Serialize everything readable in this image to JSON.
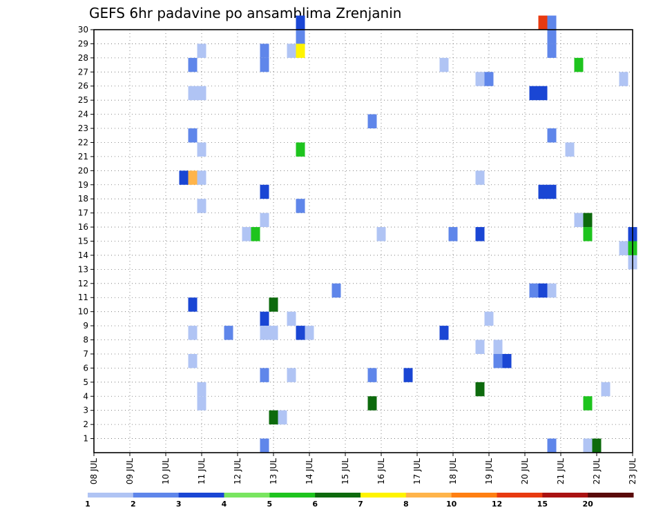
{
  "chart_data": {
    "type": "heatmap",
    "title": "GEFS 6hr padavine po ansamblima Zrenjanin",
    "y_ticks": [
      1,
      2,
      3,
      4,
      5,
      6,
      7,
      8,
      9,
      10,
      11,
      12,
      13,
      14,
      15,
      16,
      17,
      18,
      19,
      20,
      21,
      22,
      23,
      24,
      25,
      26,
      27,
      28,
      29,
      30
    ],
    "x_ticks": [
      "08 JUL",
      "09 JUL",
      "10 JUL",
      "11 JUL",
      "12 JUL",
      "13 JUL",
      "14 JUL",
      "15 JUL",
      "16 JUL",
      "17 JUL",
      "18 JUL",
      "19 JUL",
      "20 JUL",
      "21 JUL",
      "22 JUL",
      "23 JUL"
    ],
    "x_range_days": [
      8,
      23
    ],
    "y_range": [
      0,
      30
    ],
    "grid": true,
    "colorbar": {
      "labels": [
        "1",
        "2",
        "3",
        "4",
        "5",
        "6",
        "7",
        "8",
        "10",
        "12",
        "15",
        "20"
      ],
      "colors": [
        "#b0c4f4",
        "#5f86ea",
        "#1a46d4",
        "#79e560",
        "#1ec41e",
        "#0d6a0d",
        "#fff400",
        "#ffb44a",
        "#ff7f12",
        "#e83a10",
        "#aa1212",
        "#5a0a0a"
      ]
    },
    "cells": [
      [
        13.75,
        30,
        2
      ],
      [
        13.75,
        29,
        1
      ],
      [
        13.5,
        28,
        0
      ],
      [
        13.75,
        28,
        6
      ],
      [
        11.0,
        28,
        0
      ],
      [
        12.75,
        28,
        1
      ],
      [
        20.75,
        29,
        1
      ],
      [
        20.5,
        30,
        9
      ],
      [
        20.75,
        30,
        1
      ],
      [
        20.75,
        28,
        1
      ],
      [
        10.75,
        27,
        1
      ],
      [
        12.75,
        27,
        1
      ],
      [
        17.75,
        27,
        0
      ],
      [
        21.5,
        27,
        4
      ],
      [
        18.75,
        26,
        0
      ],
      [
        19.0,
        26,
        1
      ],
      [
        22.75,
        26,
        0
      ],
      [
        10.75,
        25,
        0
      ],
      [
        11.0,
        25,
        0
      ],
      [
        20.25,
        25,
        2
      ],
      [
        20.5,
        25,
        2
      ],
      [
        15.75,
        23,
        1
      ],
      [
        10.75,
        22,
        1
      ],
      [
        20.75,
        22,
        1
      ],
      [
        11.0,
        21,
        0
      ],
      [
        13.75,
        21,
        4
      ],
      [
        21.25,
        21,
        0
      ],
      [
        10.5,
        19,
        2
      ],
      [
        10.75,
        19,
        7
      ],
      [
        11.0,
        19,
        0
      ],
      [
        18.75,
        19,
        0
      ],
      [
        12.75,
        18,
        2
      ],
      [
        20.5,
        18,
        2
      ],
      [
        20.75,
        18,
        2
      ],
      [
        11.0,
        17,
        0
      ],
      [
        13.75,
        17,
        1
      ],
      [
        12.75,
        16,
        0
      ],
      [
        21.5,
        16,
        0
      ],
      [
        21.75,
        16,
        5
      ],
      [
        12.25,
        15,
        0
      ],
      [
        12.5,
        15,
        4
      ],
      [
        16.0,
        15,
        0
      ],
      [
        18.0,
        15,
        1
      ],
      [
        18.75,
        15,
        2
      ],
      [
        21.75,
        15,
        4
      ],
      [
        23.0,
        15,
        2
      ],
      [
        22.75,
        14,
        0
      ],
      [
        23.0,
        14,
        4
      ],
      [
        23.0,
        13,
        0
      ],
      [
        14.75,
        11,
        1
      ],
      [
        20.25,
        11,
        1
      ],
      [
        20.5,
        11,
        2
      ],
      [
        20.75,
        11,
        0
      ],
      [
        10.75,
        10,
        2
      ],
      [
        13.0,
        10,
        5
      ],
      [
        12.75,
        9,
        2
      ],
      [
        13.5,
        9,
        0
      ],
      [
        19.0,
        9,
        0
      ],
      [
        10.75,
        8,
        0
      ],
      [
        11.75,
        8,
        1
      ],
      [
        12.75,
        8,
        0
      ],
      [
        13.0,
        8,
        0
      ],
      [
        13.75,
        8,
        2
      ],
      [
        14.0,
        8,
        0
      ],
      [
        17.75,
        8,
        2
      ],
      [
        18.75,
        7,
        0
      ],
      [
        19.25,
        7,
        0
      ],
      [
        10.75,
        6,
        0
      ],
      [
        19.25,
        6,
        1
      ],
      [
        19.5,
        6,
        2
      ],
      [
        12.75,
        5,
        1
      ],
      [
        13.5,
        5,
        0
      ],
      [
        15.75,
        5,
        1
      ],
      [
        16.75,
        5,
        2
      ],
      [
        11.0,
        4,
        0
      ],
      [
        18.75,
        4,
        5
      ],
      [
        22.25,
        4,
        0
      ],
      [
        11.0,
        3,
        0
      ],
      [
        15.75,
        3,
        5
      ],
      [
        21.75,
        3,
        4
      ],
      [
        13.0,
        2,
        5
      ],
      [
        13.25,
        2,
        0
      ],
      [
        12.75,
        0,
        1
      ],
      [
        20.75,
        0,
        1
      ],
      [
        21.75,
        0,
        0
      ],
      [
        22.0,
        0,
        5
      ]
    ]
  }
}
